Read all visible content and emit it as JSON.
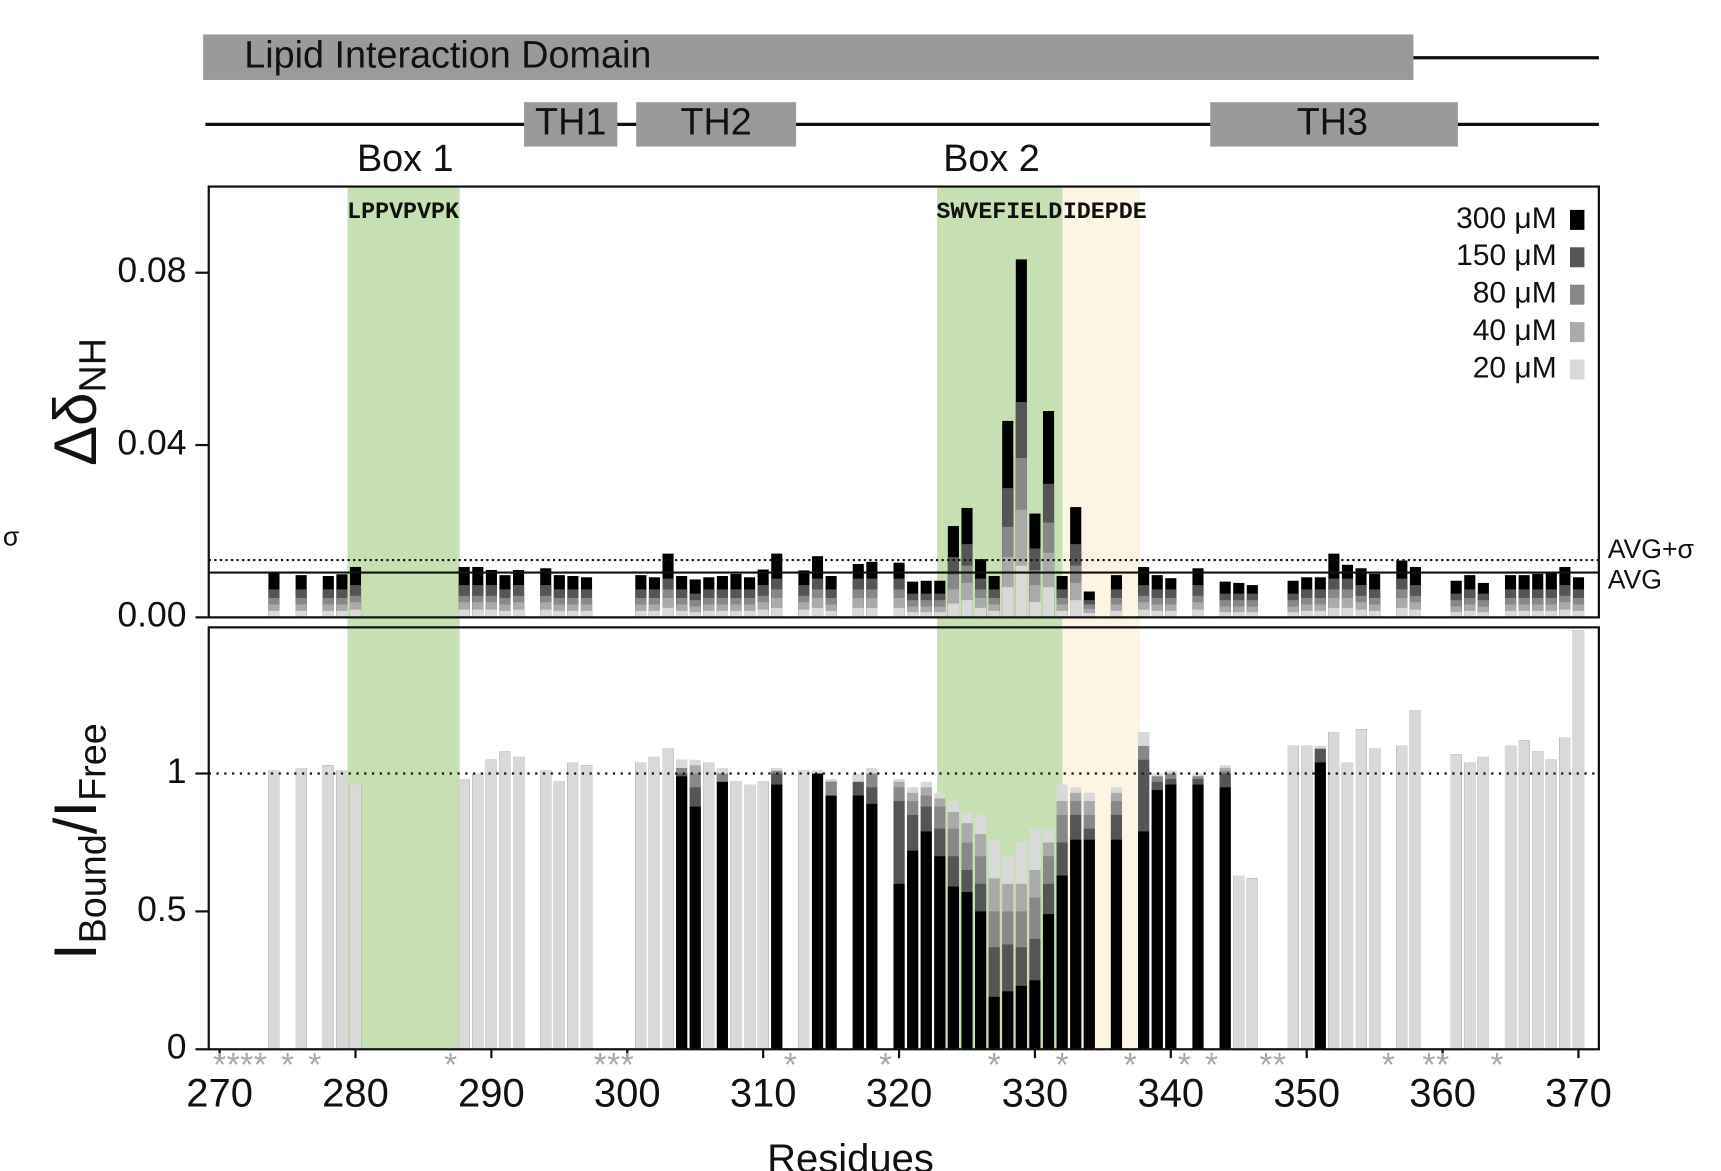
{
  "domain_map": {
    "domain": "Lipid Interaction Domain",
    "helices": [
      "TH1",
      "TH2",
      "TH3"
    ],
    "boxes": [
      "Box 1",
      "Box 2"
    ],
    "motifs": [
      "LPPVPVPK",
      "SWVEFIELD",
      "IDEPDE"
    ]
  },
  "margin_symbol": "σ",
  "chart_data": [
    {
      "type": "bar",
      "barmode": "overlay",
      "ylabel": "Δδ",
      "ylabel_sub": "NH",
      "legend": "upper right",
      "xlim": [
        269.2,
        371.5
      ],
      "ylim": [
        0,
        0.1
      ],
      "yticks": [
        {
          "value": 0,
          "label": "0.00"
        },
        {
          "value": 0.04,
          "label": "0.04"
        },
        {
          "value": 0.08,
          "label": "0.08"
        }
      ],
      "avg": 0.0104,
      "avg_label": "AVG",
      "avg_sigma": 0.0133,
      "avg_sigma_label": "AVG+σ",
      "x": [
        274,
        276,
        278,
        279,
        280,
        288,
        289,
        290,
        291,
        292,
        294,
        295,
        296,
        297,
        301,
        302,
        303,
        304,
        305,
        306,
        307,
        308,
        309,
        310,
        311,
        313,
        314,
        315,
        317,
        318,
        320,
        321,
        322,
        323,
        324,
        325,
        326,
        327,
        328,
        329,
        330,
        331,
        332,
        333,
        334,
        336,
        338,
        339,
        340,
        342,
        344,
        345,
        346,
        349,
        350,
        351,
        352,
        353,
        354,
        355,
        357,
        358,
        361,
        362,
        363,
        365,
        366,
        367,
        368,
        369,
        370
      ],
      "series": [
        {
          "name": "300 μM",
          "color": "#000000",
          "values": [
            0.0104,
            0.0098,
            0.0096,
            0.01,
            0.0117,
            0.0117,
            0.0117,
            0.011,
            0.0098,
            0.011,
            0.0114,
            0.0098,
            0.0096,
            0.0093,
            0.0098,
            0.0093,
            0.0148,
            0.0096,
            0.0088,
            0.0093,
            0.0096,
            0.0101,
            0.0093,
            0.0111,
            0.0148,
            0.0109,
            0.0142,
            0.0096,
            0.0124,
            0.0129,
            0.0127,
            0.0083,
            0.0085,
            0.0085,
            0.0212,
            0.0254,
            0.0135,
            0.0096,
            0.0456,
            0.0831,
            0.0241,
            0.0479,
            0.0096,
            0.0256,
            0.006,
            0.0098,
            0.0117,
            0.0098,
            0.0091,
            0.0114,
            0.0083,
            0.008,
            0.0075,
            0.0085,
            0.0093,
            0.0093,
            0.0148,
            0.0122,
            0.0114,
            0.0101,
            0.0132,
            0.0117,
            0.0085,
            0.0098,
            0.008,
            0.0098,
            0.0098,
            0.0101,
            0.0104,
            0.0117,
            0.0093
          ]
        },
        {
          "name": "150 μM",
          "color": "#555555",
          "values": [
            0.0065,
            0.0065,
            0.0065,
            0.0065,
            0.0075,
            0.0075,
            0.0075,
            0.0075,
            0.0065,
            0.0075,
            0.0075,
            0.0065,
            0.0065,
            0.0065,
            0.0065,
            0.0065,
            0.009,
            0.0065,
            0.0055,
            0.0065,
            0.0065,
            0.0065,
            0.0065,
            0.0075,
            0.009,
            0.0075,
            0.009,
            0.0065,
            0.009,
            0.009,
            0.009,
            0.0055,
            0.0055,
            0.0055,
            0.014,
            0.017,
            0.009,
            0.0065,
            0.03,
            0.05,
            0.016,
            0.031,
            0.0065,
            0.017,
            0.004,
            0.0065,
            0.0075,
            0.0065,
            0.0065,
            0.0075,
            0.0055,
            0.0055,
            0.0055,
            0.0055,
            0.0065,
            0.0065,
            0.009,
            0.009,
            0.0075,
            0.0065,
            0.009,
            0.0075,
            0.0055,
            0.0065,
            0.0055,
            0.0065,
            0.0065,
            0.0065,
            0.0065,
            0.0075,
            0.0065
          ]
        },
        {
          "name": "80 μM",
          "color": "#888888",
          "values": [
            0.0045,
            0.0045,
            0.0045,
            0.0045,
            0.005,
            0.005,
            0.005,
            0.005,
            0.0045,
            0.005,
            0.005,
            0.0045,
            0.0045,
            0.0045,
            0.0045,
            0.0045,
            0.0065,
            0.0045,
            0.004,
            0.0045,
            0.0045,
            0.0045,
            0.0045,
            0.005,
            0.0065,
            0.005,
            0.0065,
            0.0045,
            0.0065,
            0.0065,
            0.0065,
            0.004,
            0.004,
            0.004,
            0.01,
            0.012,
            0.0065,
            0.0045,
            0.021,
            0.037,
            0.011,
            0.022,
            0.0045,
            0.012,
            0.003,
            0.0045,
            0.005,
            0.0045,
            0.0045,
            0.005,
            0.004,
            0.004,
            0.004,
            0.004,
            0.0045,
            0.0045,
            0.0065,
            0.0065,
            0.005,
            0.0045,
            0.0065,
            0.005,
            0.004,
            0.0045,
            0.004,
            0.0045,
            0.0045,
            0.0045,
            0.0045,
            0.005,
            0.0045
          ]
        },
        {
          "name": "40 μM",
          "color": "#aaaaaa",
          "values": [
            0.003,
            0.003,
            0.003,
            0.003,
            0.0035,
            0.0035,
            0.0035,
            0.0035,
            0.003,
            0.0035,
            0.0035,
            0.003,
            0.003,
            0.003,
            0.003,
            0.003,
            0.0045,
            0.003,
            0.0025,
            0.003,
            0.003,
            0.003,
            0.003,
            0.0035,
            0.0045,
            0.0035,
            0.0045,
            0.003,
            0.0045,
            0.0045,
            0.0045,
            0.0025,
            0.0025,
            0.0025,
            0.0065,
            0.008,
            0.0045,
            0.003,
            0.014,
            0.025,
            0.0075,
            0.015,
            0.003,
            0.008,
            0.002,
            0.003,
            0.0035,
            0.003,
            0.003,
            0.0035,
            0.0025,
            0.0025,
            0.0025,
            0.0025,
            0.003,
            0.003,
            0.0045,
            0.0045,
            0.0035,
            0.003,
            0.0045,
            0.0035,
            0.0025,
            0.003,
            0.0025,
            0.003,
            0.003,
            0.003,
            0.003,
            0.0035,
            0.003
          ]
        },
        {
          "name": "20 μM",
          "color": "#d9d9d9",
          "values": [
            0.0015,
            0.0015,
            0.0015,
            0.0015,
            0.0018,
            0.0018,
            0.0018,
            0.0018,
            0.0015,
            0.0018,
            0.0018,
            0.0015,
            0.0015,
            0.0015,
            0.0015,
            0.0015,
            0.0022,
            0.0015,
            0.0012,
            0.0015,
            0.0015,
            0.0015,
            0.0015,
            0.0018,
            0.0022,
            0.0018,
            0.0022,
            0.0015,
            0.0022,
            0.0022,
            0.0022,
            0.0012,
            0.0012,
            0.0012,
            0.0032,
            0.004,
            0.0022,
            0.0015,
            0.007,
            0.012,
            0.0036,
            0.007,
            0.0015,
            0.004,
            0.001,
            0.0015,
            0.0018,
            0.0015,
            0.0015,
            0.0018,
            0.0012,
            0.0012,
            0.0012,
            0.0012,
            0.0015,
            0.0015,
            0.0022,
            0.0022,
            0.0018,
            0.0015,
            0.0022,
            0.0018,
            0.0012,
            0.0015,
            0.0012,
            0.0015,
            0.0015,
            0.0015,
            0.0015,
            0.0018,
            0.0015
          ]
        }
      ]
    },
    {
      "type": "bar",
      "barmode": "overlay",
      "ylabel": "I",
      "ylabel_sub": "Bound",
      "ylabel_2": "/I",
      "ylabel_2_sub": "Free",
      "xlabel": "Residues",
      "xlim": [
        269.2,
        371.5
      ],
      "ylim": [
        0,
        1.53
      ],
      "yticks": [
        0,
        0.5,
        1
      ],
      "xticks": [
        270,
        280,
        290,
        300,
        310,
        320,
        330,
        340,
        350,
        360,
        370
      ],
      "reference": 1,
      "marker": "*",
      "marked_residues": [
        270,
        271,
        272,
        273,
        275,
        277,
        287,
        298,
        299,
        300,
        312,
        319,
        327,
        332,
        337,
        341,
        343,
        347,
        348,
        356,
        359,
        360,
        364
      ],
      "x": [
        274,
        276,
        278,
        279,
        280,
        288,
        289,
        290,
        291,
        292,
        294,
        295,
        296,
        297,
        301,
        302,
        303,
        304,
        305,
        306,
        307,
        308,
        309,
        310,
        311,
        313,
        314,
        315,
        317,
        318,
        320,
        321,
        322,
        323,
        324,
        325,
        326,
        327,
        328,
        329,
        330,
        331,
        332,
        333,
        334,
        336,
        338,
        339,
        340,
        342,
        344,
        345,
        346,
        349,
        350,
        351,
        352,
        353,
        354,
        355,
        357,
        358,
        361,
        362,
        363,
        365,
        366,
        367,
        368,
        369,
        370
      ],
      "series": [
        {
          "name": "300 μM",
          "color": "#000000",
          "values": [
            1.01,
            1.02,
            1.03,
            1.01,
            0.96,
            0.98,
            1.0,
            1.05,
            1.08,
            1.06,
            1.01,
            0.97,
            1.04,
            1.03,
            1.04,
            1.06,
            1.09,
            0.99,
            0.88,
            1.04,
            0.97,
            0.97,
            0.96,
            0.97,
            0.96,
            1.01,
            1.0,
            0.92,
            0.92,
            0.89,
            0.6,
            0.72,
            0.79,
            0.7,
            0.59,
            0.57,
            0.5,
            0.19,
            0.21,
            0.23,
            0.25,
            0.49,
            0.63,
            0.76,
            0.76,
            0.76,
            0.79,
            0.94,
            0.96,
            0.96,
            0.95,
            0.63,
            0.62,
            1.1,
            1.1,
            1.04,
            1.15,
            1.04,
            1.16,
            1.09,
            1.1,
            1.23,
            1.07,
            1.04,
            1.06,
            1.1,
            1.12,
            1.08,
            1.05,
            1.13,
            1.52
          ]
        },
        {
          "name": "150 μM",
          "color": "#555555",
          "values": [
            1.01,
            1.02,
            1.03,
            1.01,
            0.96,
            0.98,
            1.0,
            1.05,
            1.08,
            1.06,
            1.01,
            0.97,
            1.04,
            1.03,
            1.04,
            1.06,
            1.09,
            1.0,
            0.95,
            1.04,
            1.0,
            0.97,
            0.96,
            0.97,
            1.0,
            1.01,
            1.01,
            0.97,
            0.97,
            0.95,
            0.9,
            0.85,
            0.88,
            0.8,
            0.7,
            0.65,
            0.6,
            0.37,
            0.38,
            0.37,
            0.4,
            0.6,
            0.75,
            0.85,
            0.8,
            0.85,
            1.05,
            0.97,
            0.98,
            0.98,
            1.0,
            0.63,
            0.62,
            1.1,
            1.1,
            1.09,
            1.15,
            1.04,
            1.16,
            1.09,
            1.1,
            1.23,
            1.07,
            1.04,
            1.06,
            1.1,
            1.12,
            1.08,
            1.05,
            1.13,
            1.52
          ]
        },
        {
          "name": "80 μM",
          "color": "#888888",
          "values": [
            1.01,
            1.02,
            1.03,
            1.01,
            0.96,
            0.98,
            1.0,
            1.05,
            1.08,
            1.06,
            1.01,
            0.97,
            1.04,
            1.03,
            1.04,
            1.06,
            1.09,
            1.02,
            1.0,
            1.04,
            1.0,
            0.97,
            0.96,
            0.97,
            1.01,
            1.01,
            1.01,
            0.97,
            1.0,
            1.0,
            0.95,
            0.9,
            0.92,
            0.88,
            0.8,
            0.75,
            0.7,
            0.5,
            0.5,
            0.5,
            0.55,
            0.7,
            0.85,
            0.9,
            0.85,
            0.9,
            1.1,
            0.99,
            1.0,
            0.99,
            1.01,
            0.63,
            0.62,
            1.1,
            1.1,
            1.1,
            1.15,
            1.04,
            1.16,
            1.09,
            1.1,
            1.23,
            1.07,
            1.04,
            1.06,
            1.1,
            1.12,
            1.08,
            1.05,
            1.13,
            1.52
          ]
        },
        {
          "name": "40 μM",
          "color": "#aaaaaa",
          "values": [
            1.01,
            1.02,
            1.03,
            1.01,
            0.96,
            0.98,
            1.0,
            1.05,
            1.08,
            1.06,
            1.01,
            0.97,
            1.04,
            1.03,
            1.04,
            1.06,
            1.09,
            1.05,
            1.03,
            1.04,
            1.02,
            0.97,
            0.96,
            0.97,
            1.02,
            1.01,
            1.01,
            0.98,
            1.0,
            1.02,
            0.97,
            0.93,
            0.95,
            0.91,
            0.86,
            0.82,
            0.78,
            0.62,
            0.6,
            0.6,
            0.65,
            0.75,
            0.9,
            0.93,
            0.9,
            0.93,
            1.15,
            1.0,
            1.01,
            1.0,
            1.02,
            0.63,
            0.62,
            1.1,
            1.1,
            1.1,
            1.15,
            1.04,
            1.16,
            1.09,
            1.1,
            1.23,
            1.07,
            1.04,
            1.06,
            1.1,
            1.12,
            1.08,
            1.05,
            1.13,
            1.52
          ]
        },
        {
          "name": "20 μM",
          "color": "#d9d9d9",
          "values": [
            1.01,
            1.02,
            1.03,
            1.01,
            0.96,
            0.98,
            1.0,
            1.05,
            1.08,
            1.06,
            1.01,
            0.97,
            1.04,
            1.03,
            1.04,
            1.06,
            1.09,
            1.05,
            1.05,
            1.04,
            1.02,
            0.97,
            0.96,
            0.97,
            1.02,
            1.01,
            1.01,
            0.98,
            1.0,
            1.02,
            0.98,
            0.95,
            0.97,
            0.93,
            0.9,
            0.86,
            0.85,
            0.76,
            0.7,
            0.75,
            0.8,
            0.8,
            0.96,
            0.95,
            0.93,
            0.95,
            1.15,
            1.0,
            1.01,
            1.0,
            1.03,
            0.63,
            0.62,
            1.1,
            1.1,
            1.1,
            1.15,
            1.04,
            1.16,
            1.09,
            1.1,
            1.23,
            1.07,
            1.04,
            1.06,
            1.1,
            1.12,
            1.08,
            1.05,
            1.13,
            1.52
          ]
        }
      ]
    }
  ]
}
